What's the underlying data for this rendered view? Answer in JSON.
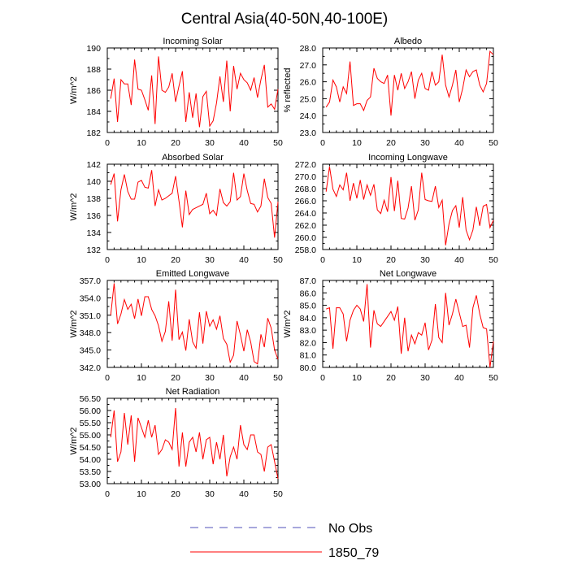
{
  "title": "Central Asia(40-50N,40-100E)",
  "colors": {
    "series": "#ff0000",
    "noobs": "#5050b8",
    "axis": "#000000"
  },
  "legend": [
    {
      "label": "No Obs",
      "style": "dashed",
      "color": "#5050b8"
    },
    {
      "label": "1850_79",
      "style": "solid",
      "color": "#ff0000"
    }
  ],
  "chart_data": [
    {
      "type": "line",
      "title": "Incoming Solar",
      "ylabel": "W/m^2",
      "xlim": [
        0,
        50
      ],
      "ylim": [
        182,
        190
      ],
      "xticks": [
        0,
        10,
        20,
        30,
        40,
        50
      ],
      "xtick_labels": [
        "0",
        "10",
        "20",
        "30",
        "40",
        "50"
      ],
      "yticks": [
        182,
        184,
        186,
        188,
        190
      ],
      "ytick_labels": [
        "182",
        "184",
        "186",
        "188",
        "190"
      ],
      "series": [
        {
          "name": "1850_79",
          "x": [
            1,
            2,
            3,
            4,
            5,
            6,
            7,
            8,
            9,
            10,
            11,
            12,
            13,
            14,
            15,
            16,
            17,
            18,
            19,
            20,
            21,
            22,
            23,
            24,
            25,
            26,
            27,
            28,
            29,
            30,
            31,
            32,
            33,
            34,
            35,
            36,
            37,
            38,
            39,
            40,
            41,
            42,
            43,
            44,
            45,
            46,
            47,
            48,
            49,
            50
          ],
          "values": [
            185.2,
            187.1,
            183.0,
            187.0,
            186.6,
            186.6,
            184.6,
            188.9,
            186.1,
            186.0,
            185.1,
            184.1,
            187.4,
            182.8,
            189.2,
            186.0,
            185.8,
            186.3,
            187.6,
            184.9,
            186.4,
            187.8,
            183.0,
            185.8,
            183.4,
            185.7,
            182.5,
            185.4,
            185.9,
            182.6,
            183.1,
            184.8,
            187.3,
            184.9,
            188.8,
            184.0,
            188.3,
            186.1,
            187.6,
            187.0,
            186.7,
            186.0,
            187.2,
            185.3,
            187.0,
            188.4,
            184.4,
            184.7,
            184.2,
            186.1
          ]
        }
      ]
    },
    {
      "type": "line",
      "title": "Albedo",
      "ylabel": "% reflected",
      "xlim": [
        0,
        50
      ],
      "ylim": [
        23.0,
        28.0
      ],
      "xticks": [
        0,
        10,
        20,
        30,
        40,
        50
      ],
      "xtick_labels": [
        "0",
        "10",
        "20",
        "30",
        "40",
        "50"
      ],
      "yticks": [
        23,
        24,
        25,
        26,
        27,
        28
      ],
      "ytick_labels": [
        "23.0",
        "24.0",
        "25.0",
        "26.0",
        "27.0",
        "28.0"
      ],
      "series": [
        {
          "name": "1850_79",
          "x": [
            1,
            2,
            3,
            4,
            5,
            6,
            7,
            8,
            9,
            10,
            11,
            12,
            13,
            14,
            15,
            16,
            17,
            18,
            19,
            20,
            21,
            22,
            23,
            24,
            25,
            26,
            27,
            28,
            29,
            30,
            31,
            32,
            33,
            34,
            35,
            36,
            37,
            38,
            39,
            40,
            41,
            42,
            43,
            44,
            45,
            46,
            47,
            48,
            49,
            50
          ],
          "values": [
            24.5,
            24.8,
            26.1,
            25.7,
            24.8,
            25.7,
            25.3,
            27.2,
            24.6,
            24.7,
            24.7,
            24.3,
            24.9,
            25.1,
            26.8,
            26.2,
            26.0,
            25.9,
            26.4,
            24.0,
            26.4,
            25.5,
            26.5,
            25.6,
            26.0,
            26.6,
            25.0,
            26.1,
            26.5,
            25.6,
            25.5,
            26.6,
            25.8,
            26.0,
            27.6,
            25.8,
            25.1,
            25.8,
            26.7,
            24.8,
            25.6,
            26.7,
            26.3,
            26.6,
            26.7,
            25.8,
            25.4,
            25.9,
            27.8,
            27.6
          ]
        }
      ]
    },
    {
      "type": "line",
      "title": "Absorbed Solar",
      "ylabel": "W/m^2",
      "xlim": [
        0,
        50
      ],
      "ylim": [
        132,
        142
      ],
      "xticks": [
        0,
        10,
        20,
        30,
        40,
        50
      ],
      "xtick_labels": [
        "0",
        "10",
        "20",
        "30",
        "40",
        "50"
      ],
      "yticks": [
        132,
        134,
        136,
        138,
        140,
        142
      ],
      "ytick_labels": [
        "132",
        "134",
        "136",
        "138",
        "140",
        "142"
      ],
      "series": [
        {
          "name": "1850_79",
          "x": [
            1,
            2,
            3,
            4,
            5,
            6,
            7,
            8,
            9,
            10,
            11,
            12,
            13,
            14,
            15,
            16,
            17,
            18,
            19,
            20,
            21,
            22,
            23,
            24,
            25,
            26,
            27,
            28,
            29,
            30,
            31,
            32,
            33,
            34,
            35,
            36,
            37,
            38,
            39,
            40,
            41,
            42,
            43,
            44,
            45,
            46,
            47,
            48,
            49,
            50
          ],
          "values": [
            139.6,
            140.9,
            135.3,
            139.0,
            140.8,
            138.8,
            137.9,
            137.9,
            139.9,
            140.1,
            139.3,
            139.2,
            141.3,
            137.1,
            139.0,
            137.8,
            138.0,
            138.3,
            138.6,
            140.6,
            137.7,
            134.6,
            138.9,
            136.1,
            136.7,
            136.9,
            137.1,
            137.3,
            138.6,
            136.2,
            136.6,
            136.0,
            139.1,
            137.5,
            137.1,
            137.6,
            141.0,
            137.8,
            138.2,
            140.9,
            138.9,
            137.4,
            137.3,
            136.4,
            137.1,
            140.3,
            138.1,
            137.4,
            133.4,
            137.6
          ]
        }
      ]
    },
    {
      "type": "line",
      "title": "Incoming Longwave",
      "ylabel": "",
      "xlim": [
        0,
        50
      ],
      "ylim": [
        258,
        272
      ],
      "xticks": [
        0,
        10,
        20,
        30,
        40,
        50
      ],
      "xtick_labels": [
        "0",
        "10",
        "20",
        "30",
        "40",
        "50"
      ],
      "yticks": [
        258,
        260,
        262,
        264,
        266,
        268,
        270,
        272
      ],
      "ytick_labels": [
        "258.0",
        "260.0",
        "262.0",
        "264.0",
        "266.0",
        "268.0",
        "270.0",
        "272.0"
      ],
      "series": [
        {
          "name": "1850_79",
          "x": [
            1,
            2,
            3,
            4,
            5,
            6,
            7,
            8,
            9,
            10,
            11,
            12,
            13,
            14,
            15,
            16,
            17,
            18,
            19,
            20,
            21,
            22,
            23,
            24,
            25,
            26,
            27,
            28,
            29,
            30,
            31,
            32,
            33,
            34,
            35,
            36,
            37,
            38,
            39,
            40,
            41,
            42,
            43,
            44,
            45,
            46,
            47,
            48,
            49,
            50
          ],
          "values": [
            267.5,
            271.6,
            267.9,
            266.7,
            268.6,
            267.8,
            270.6,
            266.0,
            268.9,
            266.4,
            269.4,
            266.2,
            268.6,
            266.9,
            268.7,
            264.5,
            263.9,
            266.1,
            264.2,
            269.9,
            264.3,
            269.3,
            263.1,
            263.0,
            264.8,
            268.4,
            262.8,
            264.5,
            270.6,
            266.2,
            266.0,
            265.9,
            268.4,
            264.9,
            266.1,
            258.7,
            262.2,
            264.4,
            265.2,
            261.6,
            266.6,
            261.2,
            259.6,
            261.2,
            265.0,
            261.9,
            265.1,
            265.4,
            261.6,
            262.8
          ]
        }
      ]
    },
    {
      "type": "line",
      "title": "Emitted Longwave",
      "ylabel": "W/m^2",
      "xlim": [
        0,
        50
      ],
      "ylim": [
        342,
        357
      ],
      "xticks": [
        0,
        10,
        20,
        30,
        40,
        50
      ],
      "xtick_labels": [
        "0",
        "10",
        "20",
        "30",
        "40",
        "50"
      ],
      "yticks": [
        342,
        345,
        348,
        351,
        354,
        357
      ],
      "ytick_labels": [
        "342.0",
        "345.0",
        "348.0",
        "351.0",
        "354.0",
        "357.0"
      ],
      "series": [
        {
          "name": "1850_79",
          "x": [
            1,
            2,
            3,
            4,
            5,
            6,
            7,
            8,
            9,
            10,
            11,
            12,
            13,
            14,
            15,
            16,
            17,
            18,
            19,
            20,
            21,
            22,
            23,
            24,
            25,
            26,
            27,
            28,
            29,
            30,
            31,
            32,
            33,
            34,
            35,
            36,
            37,
            38,
            39,
            40,
            41,
            42,
            43,
            44,
            45,
            46,
            47,
            48,
            49,
            50
          ],
          "values": [
            351.0,
            356.5,
            349.5,
            351.2,
            353.7,
            352.0,
            352.9,
            350.4,
            353.8,
            350.9,
            354.2,
            354.2,
            352.0,
            350.9,
            349.2,
            346.5,
            348.2,
            353.4,
            346.6,
            355.4,
            346.8,
            348.1,
            344.9,
            350.3,
            346.4,
            345.3,
            351.5,
            346.1,
            351.7,
            349.1,
            350.2,
            348.6,
            350.9,
            347.0,
            346.0,
            342.9,
            344.1,
            350.0,
            347.6,
            344.8,
            348.5,
            346.4,
            343.0,
            342.6,
            347.7,
            345.5,
            350.5,
            348.8,
            345.0,
            343.4
          ]
        }
      ]
    },
    {
      "type": "line",
      "title": "Net Longwave",
      "ylabel": "W/m^2",
      "xlim": [
        0,
        50
      ],
      "ylim": [
        80,
        87
      ],
      "xticks": [
        0,
        10,
        20,
        30,
        40,
        50
      ],
      "xtick_labels": [
        "0",
        "10",
        "20",
        "30",
        "40",
        "50"
      ],
      "yticks": [
        80,
        81,
        82,
        83,
        84,
        85,
        86,
        87
      ],
      "ytick_labels": [
        "80.0",
        "81.0",
        "82.0",
        "83.0",
        "84.0",
        "85.0",
        "86.0",
        "87.0"
      ],
      "series": [
        {
          "name": "1850_79",
          "x": [
            1,
            2,
            3,
            4,
            5,
            6,
            7,
            8,
            9,
            10,
            11,
            12,
            13,
            14,
            15,
            16,
            17,
            18,
            19,
            20,
            21,
            22,
            23,
            24,
            25,
            26,
            27,
            28,
            29,
            30,
            31,
            32,
            33,
            34,
            35,
            36,
            37,
            38,
            39,
            40,
            41,
            42,
            43,
            44,
            45,
            46,
            47,
            48,
            49,
            50
          ],
          "values": [
            84.7,
            84.8,
            81.5,
            84.8,
            84.8,
            84.3,
            82.1,
            83.8,
            84.6,
            85.0,
            84.7,
            83.7,
            86.7,
            81.6,
            84.6,
            83.5,
            83.3,
            83.7,
            84.1,
            84.5,
            83.8,
            84.9,
            81.1,
            84.0,
            81.3,
            82.6,
            81.9,
            82.8,
            82.6,
            83.6,
            81.4,
            82.2,
            85.1,
            82.4,
            82.0,
            86.0,
            83.4,
            84.3,
            85.5,
            84.4,
            83.3,
            83.4,
            81.6,
            84.8,
            85.8,
            84.3,
            83.2,
            83.1,
            80.0,
            82.1
          ]
        }
      ]
    },
    {
      "type": "line",
      "title": "Net Radiation",
      "ylabel": "W/m^2",
      "xlim": [
        0,
        50
      ],
      "ylim": [
        53.0,
        56.5
      ],
      "xticks": [
        0,
        10,
        20,
        30,
        40,
        50
      ],
      "xtick_labels": [
        "0",
        "10",
        "20",
        "30",
        "40",
        "50"
      ],
      "yticks": [
        53.0,
        53.5,
        54.0,
        54.5,
        55.0,
        55.5,
        56.0,
        56.5
      ],
      "ytick_labels": [
        "53.00",
        "53.50",
        "54.00",
        "54.50",
        "55.00",
        "55.50",
        "56.00",
        "56.50"
      ],
      "series": [
        {
          "name": "1850_79",
          "x": [
            1,
            2,
            3,
            4,
            5,
            6,
            7,
            8,
            9,
            10,
            11,
            12,
            13,
            14,
            15,
            16,
            17,
            18,
            19,
            20,
            21,
            22,
            23,
            24,
            25,
            26,
            27,
            28,
            29,
            30,
            31,
            32,
            33,
            34,
            35,
            36,
            37,
            38,
            39,
            40,
            41,
            42,
            43,
            44,
            45,
            46,
            47,
            48,
            49,
            50
          ],
          "values": [
            54.9,
            56.0,
            53.9,
            54.3,
            55.9,
            54.6,
            55.8,
            53.9,
            55.7,
            55.3,
            54.9,
            55.6,
            54.9,
            55.4,
            54.2,
            54.4,
            54.8,
            54.7,
            54.4,
            56.1,
            53.7,
            55.1,
            53.7,
            54.7,
            54.9,
            54.3,
            55.1,
            54.0,
            54.8,
            54.9,
            53.8,
            54.7,
            54.0,
            55.0,
            53.3,
            54.1,
            54.5,
            54.0,
            55.4,
            54.6,
            54.4,
            55.0,
            55.0,
            54.3,
            54.2,
            53.5,
            54.5,
            54.6,
            53.9,
            53.2
          ]
        }
      ]
    }
  ]
}
